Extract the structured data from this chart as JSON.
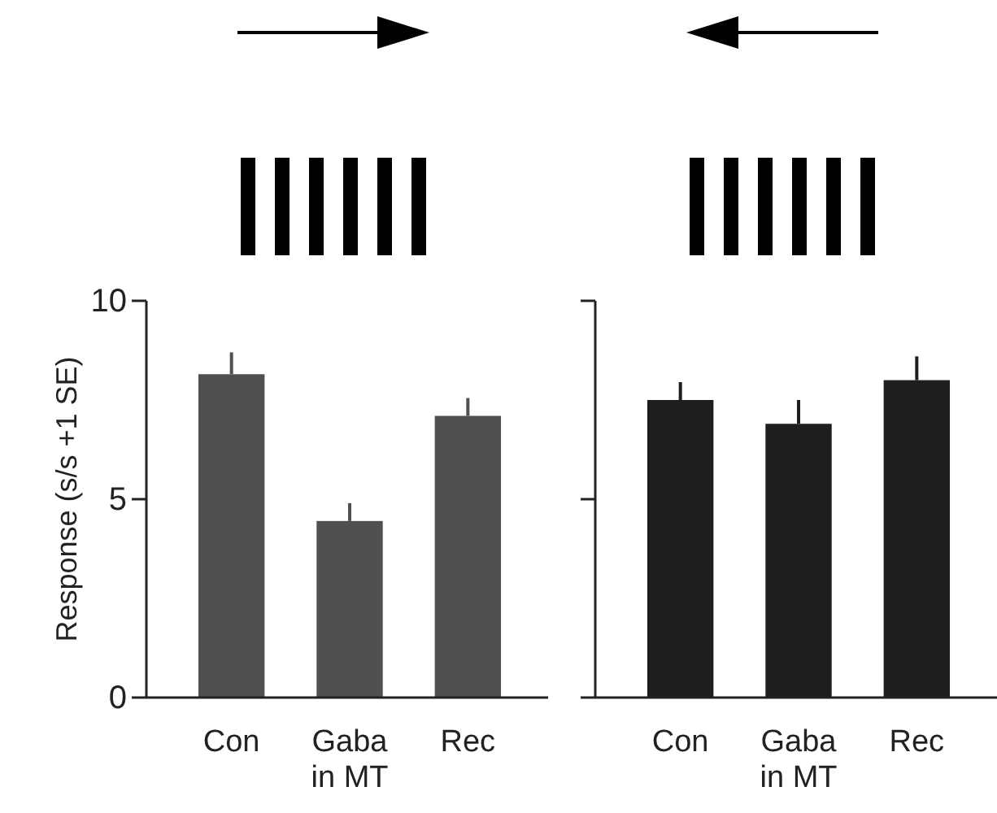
{
  "chart_data": [
    {
      "type": "bar",
      "ylabel": "Response (s/s +1 SE)",
      "categories": [
        "Con",
        "Gaba in MT",
        "Rec"
      ],
      "values": [
        8.15,
        4.45,
        7.1
      ],
      "errors": [
        [
          8.15,
          8.7
        ],
        [
          4.45,
          4.9
        ],
        [
          7.1,
          7.55
        ]
      ],
      "color": "#505050",
      "ylim": [
        0,
        10
      ],
      "yticks": [
        0,
        5,
        10
      ]
    },
    {
      "type": "bar",
      "categories": [
        "Con",
        "Gaba in MT",
        "Rec"
      ],
      "values": [
        7.5,
        6.9,
        8.0
      ],
      "errors": [
        [
          7.5,
          7.95
        ],
        [
          6.9,
          7.5
        ],
        [
          8.0,
          8.6
        ]
      ],
      "color": "#1e1e1e",
      "ylim": [
        0,
        10
      ],
      "yticks": [
        0,
        5,
        10
      ],
      "tick_labels": "x"
    }
  ]
}
